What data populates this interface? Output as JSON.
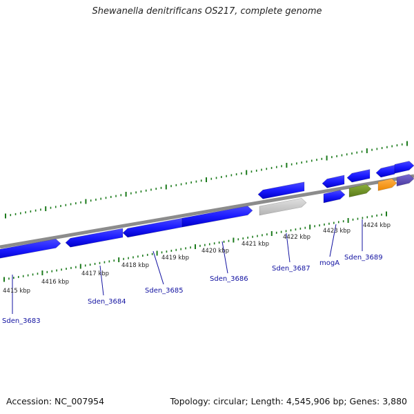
{
  "title": "Shewanella denitrificans OS217, complete genome",
  "footer": {
    "accession": "Accession: NC_007954",
    "stats": "Topology: circular; Length: 4,545,906 bp; Genes: 3,880"
  },
  "colors": {
    "forward_gene": "#1a1aff",
    "reverse_gene": "#1a1aff",
    "gray_gene": "#c8c8c8",
    "olive_gene": "#6b8e23",
    "orange_gene": "#ff9a1a",
    "purple_gene": "#5a4ab0",
    "backbone": "#8c8c8c",
    "tick": "#1b7a1b",
    "label": "#1010a0"
  },
  "scale_ticks": [
    "4415 kbp",
    "4416 kbp",
    "4417 kbp",
    "4418 kbp",
    "4419 kbp",
    "4420 kbp",
    "4421 kbp",
    "4422 kbp",
    "4423 kbp",
    "4424 kbp"
  ],
  "gene_labels": [
    "Sden_3683",
    "Sden_3684",
    "Sden_3685",
    "Sden_3686",
    "Sden_3687",
    "mogA",
    "Sden_3689"
  ]
}
